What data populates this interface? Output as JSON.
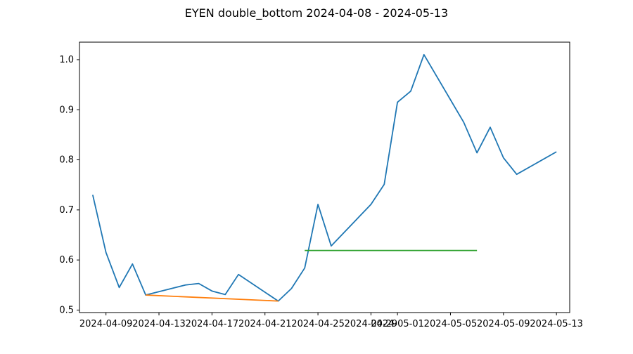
{
  "chart_data": {
    "type": "line",
    "title": "EYEN double_bottom 2024-04-08 - 2024-05-13",
    "xlabel": "",
    "ylabel": "",
    "xlim": [
      "2024-04-07",
      "2024-05-14"
    ],
    "ylim": [
      0.495,
      1.035
    ],
    "grid": false,
    "x_ticks": [
      "2024-04-09",
      "2024-04-13",
      "2024-04-17",
      "2024-04-21",
      "2024-04-25",
      "2024-04-29",
      "2024-05-01",
      "2024-05-05",
      "2024-05-09",
      "2024-05-13"
    ],
    "y_ticks": [
      0.5,
      0.6,
      0.7,
      0.8,
      0.9,
      1.0
    ],
    "series": [
      {
        "color": "#1f77b4",
        "points": [
          {
            "x": "2024-04-08",
            "y": 0.73
          },
          {
            "x": "2024-04-09",
            "y": 0.615
          },
          {
            "x": "2024-04-10",
            "y": 0.545
          },
          {
            "x": "2024-04-11",
            "y": 0.592
          },
          {
            "x": "2024-04-12",
            "y": 0.53
          },
          {
            "x": "2024-04-15",
            "y": 0.55
          },
          {
            "x": "2024-04-16",
            "y": 0.553
          },
          {
            "x": "2024-04-17",
            "y": 0.538
          },
          {
            "x": "2024-04-18",
            "y": 0.531
          },
          {
            "x": "2024-04-19",
            "y": 0.571
          },
          {
            "x": "2024-04-22",
            "y": 0.518
          },
          {
            "x": "2024-04-23",
            "y": 0.543
          },
          {
            "x": "2024-04-24",
            "y": 0.584
          },
          {
            "x": "2024-04-25",
            "y": 0.711
          },
          {
            "x": "2024-04-26",
            "y": 0.628
          },
          {
            "x": "2024-04-29",
            "y": 0.711
          },
          {
            "x": "2024-04-30",
            "y": 0.751
          },
          {
            "x": "2024-05-01",
            "y": 0.915
          },
          {
            "x": "2024-05-02",
            "y": 0.937
          },
          {
            "x": "2024-05-03",
            "y": 1.01
          },
          {
            "x": "2024-05-06",
            "y": 0.875
          },
          {
            "x": "2024-05-07",
            "y": 0.814
          },
          {
            "x": "2024-05-08",
            "y": 0.865
          },
          {
            "x": "2024-05-09",
            "y": 0.804
          },
          {
            "x": "2024-05-10",
            "y": 0.771
          },
          {
            "x": "2024-05-13",
            "y": 0.816
          }
        ]
      },
      {
        "color": "#ff7f0e",
        "points": [
          {
            "x": "2024-04-12",
            "y": 0.53
          },
          {
            "x": "2024-04-22",
            "y": 0.518
          }
        ]
      },
      {
        "color": "#2ca02c",
        "points": [
          {
            "x": "2024-04-24",
            "y": 0.619
          },
          {
            "x": "2024-05-07",
            "y": 0.619
          }
        ]
      }
    ]
  }
}
